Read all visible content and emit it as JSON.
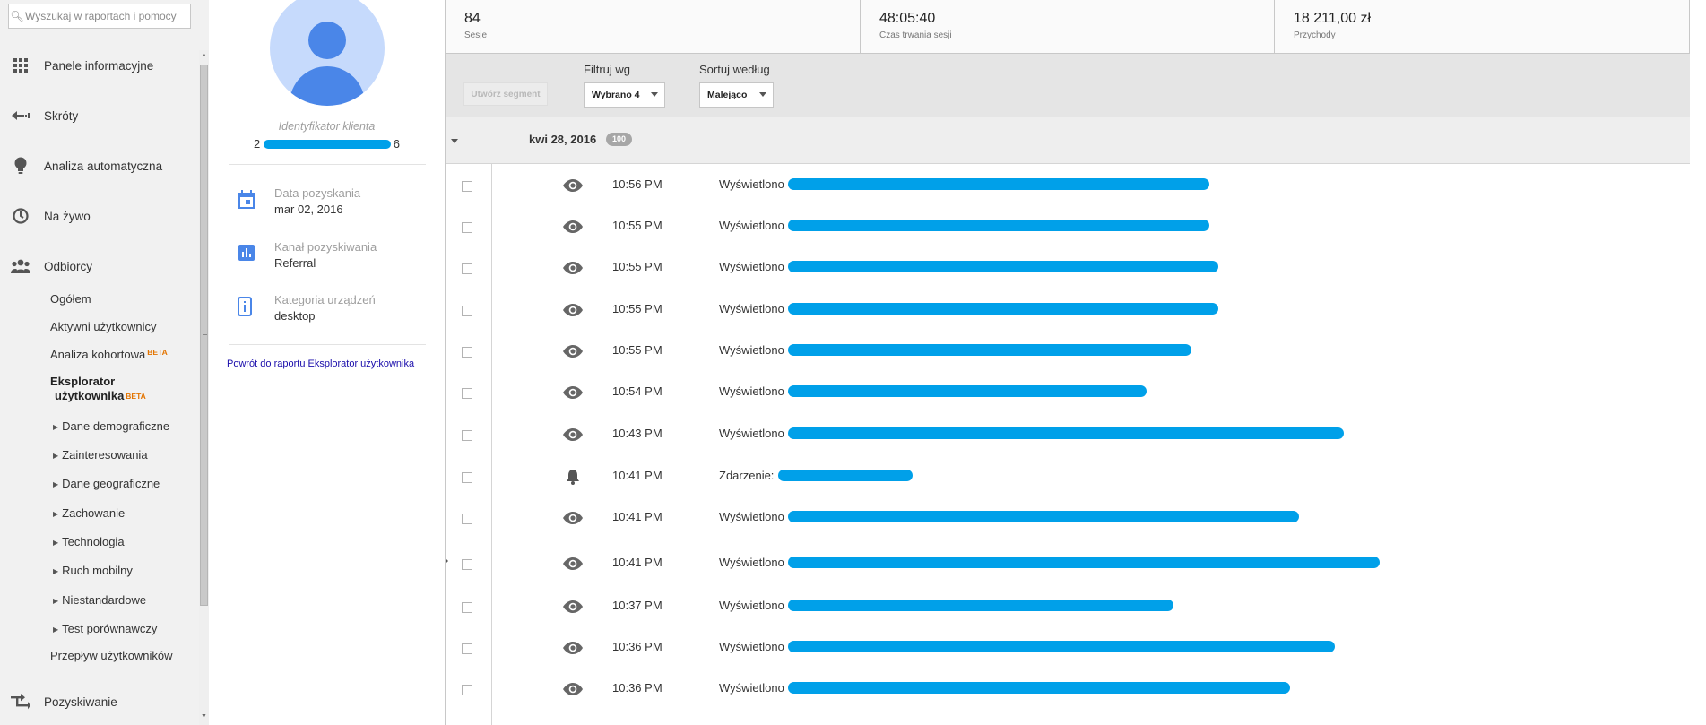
{
  "search": {
    "placeholder": "Wyszukaj w raportach i pomocy"
  },
  "nav": {
    "main_items": [
      {
        "label": "Panele informacyjne",
        "icon": "dashboard-grid-icon"
      },
      {
        "label": "Skróty",
        "icon": "shortcut-arrow-icon"
      },
      {
        "label": "Analiza automatyczna",
        "icon": "lightbulb-icon"
      },
      {
        "label": "Na żywo",
        "icon": "clock-icon"
      },
      {
        "label": "Odbiorcy",
        "icon": "people-icon"
      }
    ],
    "audience_sub": [
      {
        "label": "Ogółem"
      },
      {
        "label": "Aktywni użytkownicy"
      },
      {
        "label": "Analiza kohortowa",
        "badge": "BETA"
      }
    ],
    "selected": {
      "line1": "Eksplorator",
      "line2": "użytkownika",
      "badge": "BETA"
    },
    "expandable": [
      {
        "label": "Dane demograficzne"
      },
      {
        "label": "Zainteresowania"
      },
      {
        "label": "Dane geograficzne"
      },
      {
        "label": "Zachowanie"
      },
      {
        "label": "Technologia"
      },
      {
        "label": "Ruch mobilny"
      },
      {
        "label": "Niestandardowe"
      },
      {
        "label": "Test porównawczy"
      }
    ],
    "flow": {
      "label": "Przepływ użytkowników"
    },
    "acquisition": {
      "label": "Pozyskiwanie",
      "icon": "acquisition-arrows-icon"
    }
  },
  "profile": {
    "client_id_label": "Identyfikator klienta",
    "client_id_start": "2",
    "client_id_end": "6",
    "info": [
      {
        "title": "Data pozyskania",
        "value": "mar 02, 2016",
        "icon": "calendar-icon"
      },
      {
        "title": "Kanał pozyskiwania",
        "value": "Referral",
        "icon": "bar-chart-icon"
      },
      {
        "title": "Kategoria urządzeń",
        "value": "desktop",
        "icon": "device-icon"
      }
    ],
    "back_link": "Powrót do raportu Eksplorator użytkownika"
  },
  "metrics": [
    {
      "value": "84",
      "label": "Sesje"
    },
    {
      "value": "48:05:40",
      "label": "Czas trwania sesji"
    },
    {
      "value": "18 211,00 zł",
      "label": "Przychody"
    }
  ],
  "toolbar": {
    "segment_button": "Utwórz segment",
    "filter_label": "Filtruj wg",
    "filter_value": "Wybrano 4",
    "sort_label": "Sortuj według",
    "sort_value": "Malejąco"
  },
  "date_group": {
    "label": "kwi 28, 2016",
    "count": "100"
  },
  "activities": [
    {
      "time": "10:56 PM",
      "action": "Wyświetlono",
      "icon": "eye-icon",
      "redaction_fraction": 0.47
    },
    {
      "time": "10:55 PM",
      "action": "Wyświetlono",
      "icon": "eye-icon",
      "redaction_fraction": 0.47
    },
    {
      "time": "10:55 PM",
      "action": "Wyświetlono",
      "icon": "eye-icon",
      "redaction_fraction": 0.48
    },
    {
      "time": "10:55 PM",
      "action": "Wyświetlono",
      "icon": "eye-icon",
      "redaction_fraction": 0.48
    },
    {
      "time": "10:55 PM",
      "action": "Wyświetlono",
      "icon": "eye-icon",
      "redaction_fraction": 0.45
    },
    {
      "time": "10:54 PM",
      "action": "Wyświetlono",
      "icon": "eye-icon",
      "redaction_fraction": 0.4
    },
    {
      "time": "10:43 PM",
      "action": "Wyświetlono",
      "icon": "eye-icon",
      "redaction_fraction": 0.62
    },
    {
      "time": "10:41 PM",
      "action": "Zdarzenie:",
      "icon": "bell-icon",
      "redaction_fraction": 0.15
    },
    {
      "time": "10:41 PM",
      "action": "Wyświetlono",
      "icon": "eye-icon",
      "redaction_fraction": 0.57
    },
    {
      "time": "10:41 PM",
      "action": "Wyświetlono",
      "icon": "eye-icon",
      "redaction_fraction": 0.66
    },
    {
      "time": "10:37 PM",
      "action": "Wyświetlono",
      "icon": "eye-icon",
      "redaction_fraction": 0.43
    },
    {
      "time": "10:36 PM",
      "action": "Wyświetlono",
      "icon": "eye-icon",
      "redaction_fraction": 0.61
    },
    {
      "time": "10:36 PM",
      "action": "Wyświetlono",
      "icon": "eye-icon",
      "redaction_fraction": 0.56
    }
  ],
  "colors": {
    "accent_blue": "#4a86e8",
    "avatar_bg": "#c6dafc",
    "redaction": "#00a0e9",
    "beta": "#e37400"
  }
}
